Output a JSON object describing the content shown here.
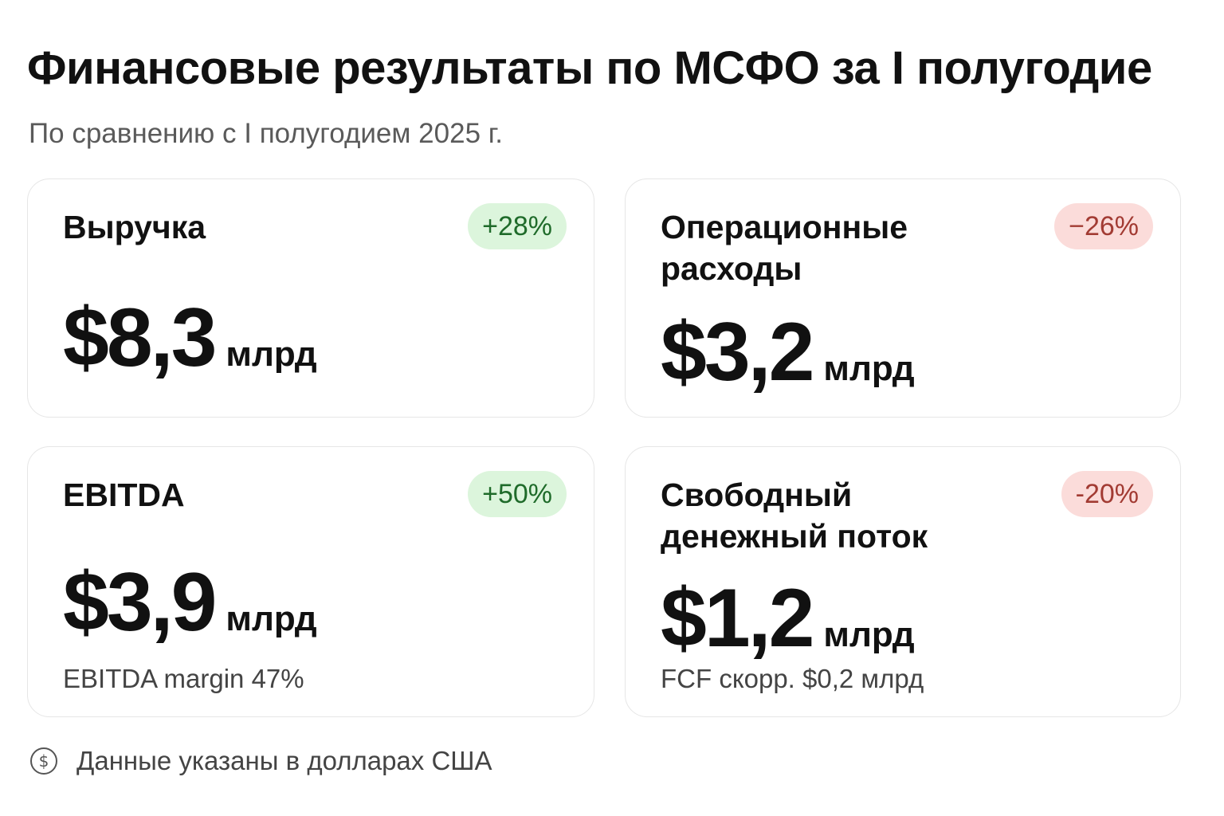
{
  "header": {
    "title": "Финансовые результаты по МСФО за I полугодие",
    "subtitle": "По сравнению с I полугодием 2025 г."
  },
  "cards": {
    "revenue": {
      "label": "Выручка",
      "change": "+28%",
      "amount": "$8,3",
      "unit": "млрд"
    },
    "opex": {
      "label": "Операционные расходы",
      "change": "−26%",
      "amount": "$3,2",
      "unit": "млрд"
    },
    "ebitda": {
      "label": "EBITDA",
      "change": "+50%",
      "amount": "$3,9",
      "unit": "млрд",
      "note": "EBITDA margin 47%"
    },
    "fcf": {
      "label": "Свободный денежный поток",
      "change": "-20%",
      "amount": "$1,2",
      "unit": "млрд",
      "note": "FCF скорр. $0,2 млрд"
    }
  },
  "footer": {
    "icon": "dollar-coin-icon",
    "text": "Данные указаны в долларах США"
  },
  "colors": {
    "positive_bg": "#dcf5dc",
    "positive_text": "#1f6b2a",
    "negative_bg": "#fbdcda",
    "negative_text": "#a23b33"
  }
}
